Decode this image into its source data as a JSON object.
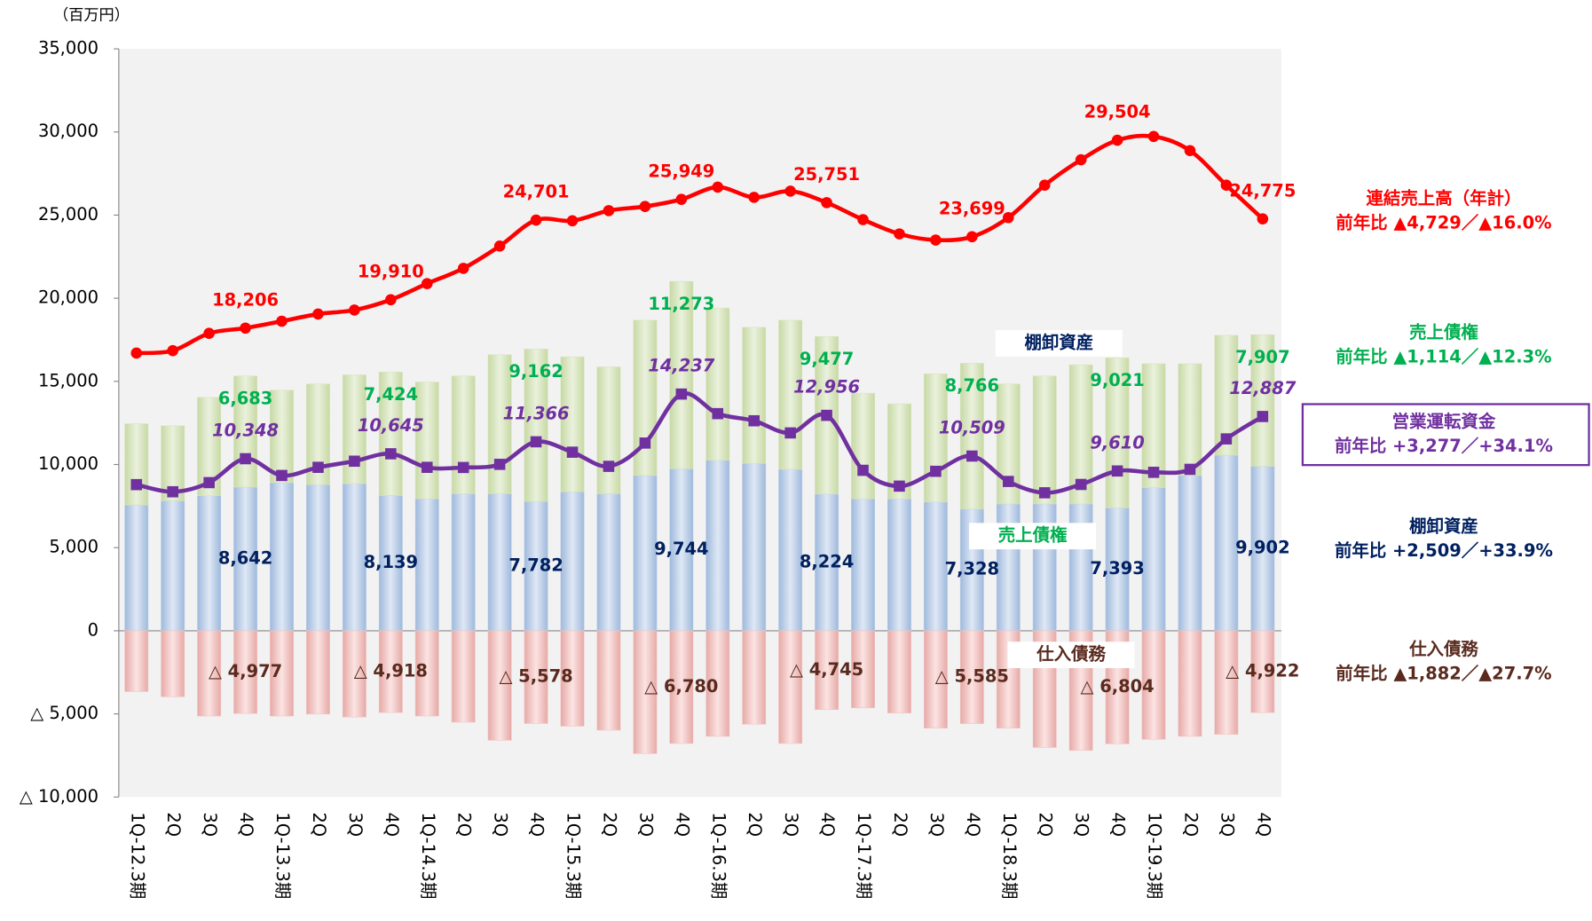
{
  "chart_data": {
    "type": "bar",
    "unit_label": "（百万円）",
    "categories": [
      "1Q-12.3期",
      "2Q",
      "3Q",
      "4Q",
      "1Q-13.3期",
      "2Q",
      "3Q",
      "4Q",
      "1Q-14.3期",
      "2Q",
      "3Q",
      "4Q",
      "1Q-15.3期",
      "2Q",
      "3Q",
      "4Q",
      "1Q-16.3期",
      "2Q",
      "3Q",
      "4Q",
      "1Q-17.3期",
      "2Q",
      "3Q",
      "4Q",
      "1Q-18.3期",
      "2Q",
      "3Q",
      "4Q",
      "1Q-19.3期",
      "2Q",
      "3Q",
      "4Q"
    ],
    "ylim": [
      -10000,
      35000
    ],
    "yticks": [
      {
        "value": -10000,
        "label": "△ 10,000"
      },
      {
        "value": -5000,
        "label": "△ 5,000"
      },
      0,
      {
        "value": 5000,
        "label": "5,000"
      },
      {
        "value": 10000,
        "label": "10,000"
      },
      {
        "value": 15000,
        "label": "15,000"
      },
      {
        "value": 20000,
        "label": "20,000"
      },
      {
        "value": 25000,
        "label": "25,000"
      },
      {
        "value": 30000,
        "label": "30,000"
      },
      {
        "value": 35000,
        "label": "35,000"
      }
    ],
    "series": [
      {
        "name": "棚卸資産",
        "type": "bar",
        "color": "#b9cde6",
        "label_color": "#002060",
        "values": [
          7570,
          7820,
          8120,
          8642,
          8910,
          8790,
          8850,
          8139,
          7940,
          8240,
          8240,
          7782,
          8360,
          8240,
          9340,
          9744,
          10260,
          10070,
          9710,
          8224,
          7940,
          7940,
          7750,
          7328,
          7630,
          7630,
          7630,
          7393,
          8610,
          9340,
          10560,
          9902
        ],
        "value_labels": [
          null,
          null,
          null,
          "8,642",
          null,
          null,
          null,
          "8,139",
          null,
          null,
          null,
          "7,782",
          null,
          null,
          null,
          "9,744",
          null,
          null,
          null,
          "8,224",
          null,
          null,
          null,
          "7,328",
          null,
          null,
          null,
          "7,393",
          null,
          null,
          null,
          "9,902"
        ]
      },
      {
        "name": "売上債権",
        "type": "bar",
        "color": "#d7e4bd",
        "label_color": "#00b050",
        "values": [
          4880,
          4510,
          5920,
          6683,
          5560,
          6050,
          6540,
          7424,
          7020,
          7080,
          8360,
          9162,
          8120,
          7630,
          9340,
          11273,
          9150,
          8180,
          8970,
          9477,
          6350,
          5710,
          7700,
          8766,
          7210,
          7690,
          8370,
          9021,
          7450,
          6720,
          7210,
          7907
        ],
        "value_labels": [
          null,
          null,
          null,
          "6,683",
          null,
          null,
          null,
          "7,424",
          null,
          null,
          null,
          "9,162",
          null,
          null,
          null,
          "11,273",
          null,
          null,
          null,
          "9,477",
          null,
          null,
          null,
          "8,766",
          null,
          null,
          null,
          "9,021",
          null,
          null,
          null,
          "7,907"
        ]
      },
      {
        "name": "仕入債務",
        "type": "bar",
        "color": "#f2c6c4",
        "label_color": "#5a2a1e",
        "values": [
          -3660,
          -3970,
          -5130,
          -4977,
          -5130,
          -5010,
          -5190,
          -4918,
          -5130,
          -5500,
          -6590,
          -5578,
          -5740,
          -5980,
          -7390,
          -6780,
          -6350,
          -5620,
          -6780,
          -4745,
          -4640,
          -4950,
          -5860,
          -5585,
          -5860,
          -7020,
          -7200,
          -6804,
          -6530,
          -6350,
          -6230,
          -4922
        ],
        "value_labels": [
          null,
          null,
          null,
          "△ 4,977",
          null,
          null,
          null,
          "△ 4,918",
          null,
          null,
          null,
          "△ 5,578",
          null,
          null,
          null,
          "△ 6,780",
          null,
          null,
          null,
          "△ 4,745",
          null,
          null,
          null,
          "△ 5,585",
          null,
          null,
          null,
          "△ 6,804",
          null,
          null,
          null,
          "△ 4,922"
        ]
      },
      {
        "type": "line",
        "color": "#ff0000",
        "label_color": "#ff0000",
        "marker": "circle",
        "values": [
          16700,
          16850,
          17890,
          18206,
          18620,
          19050,
          19290,
          19910,
          20880,
          21800,
          23140,
          24701,
          24660,
          25270,
          25520,
          25949,
          26680,
          26070,
          26440,
          25751,
          24730,
          23870,
          23500,
          23699,
          24850,
          26800,
          28330,
          29504,
          29730,
          28880,
          26800,
          24775
        ],
        "value_labels": [
          null,
          null,
          null,
          "18,206",
          null,
          null,
          null,
          "19,910",
          null,
          null,
          null,
          "24,701",
          null,
          null,
          null,
          "25,949",
          null,
          null,
          null,
          "25,751",
          null,
          null,
          null,
          "23,699",
          null,
          null,
          null,
          "29,504",
          null,
          null,
          null,
          "24,775"
        ]
      },
      {
        "type": "line",
        "color": "#7030a0",
        "label_color": "#7030a0",
        "marker": "square",
        "values": [
          8790,
          8360,
          8910,
          10348,
          9340,
          9830,
          10200,
          10645,
          9830,
          9820,
          10010,
          11366,
          10740,
          9890,
          11290,
          14237,
          13060,
          12630,
          11900,
          12956,
          9650,
          8700,
          9590,
          10509,
          8980,
          8300,
          8800,
          9610,
          9530,
          9710,
          11540,
          12887
        ],
        "value_labels": [
          null,
          null,
          null,
          "10,348",
          null,
          null,
          null,
          "10,645",
          null,
          null,
          null,
          "11,366",
          null,
          null,
          null,
          "14,237",
          null,
          null,
          null,
          "12,956",
          null,
          null,
          null,
          "10,509",
          null,
          null,
          null,
          "9,610",
          null,
          null,
          null,
          "12,887"
        ]
      }
    ],
    "annotations": [
      {
        "title": "連結売上高（年計）",
        "note": "前年比 ▲4,729／▲16.0%",
        "color": "#ff0000"
      },
      {
        "title": "売上債権",
        "note": "前年比 ▲1,114／▲12.3%",
        "color": "#00b050"
      },
      {
        "title": "営業運転資金",
        "note": "前年比 +3,277／+34.1%",
        "color": "#7030a0",
        "boxed": true
      },
      {
        "title": "棚卸資産",
        "note": "前年比 +2,509／+33.9%",
        "color": "#002060"
      },
      {
        "title": "仕入債務",
        "note": "前年比 ▲1,882／▲27.7%",
        "color": "#5a2a1e"
      }
    ]
  }
}
